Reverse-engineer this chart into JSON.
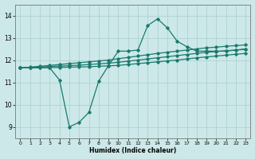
{
  "xlabel": "Humidex (Indice chaleur)",
  "line_color": "#1a7a6e",
  "bg_color": "#cce8e8",
  "grid_color": "#aacfcf",
  "xlim": [
    -0.5,
    23.5
  ],
  "ylim": [
    8.5,
    14.5
  ],
  "yticks": [
    9,
    10,
    11,
    12,
    13,
    14
  ],
  "xticks": [
    0,
    1,
    2,
    3,
    4,
    5,
    6,
    7,
    8,
    9,
    10,
    11,
    12,
    13,
    14,
    15,
    16,
    17,
    18,
    19,
    20,
    21,
    22,
    23
  ],
  "series1_x": [
    0,
    1,
    2,
    3,
    4,
    5,
    6,
    7,
    8,
    9,
    10,
    11,
    12,
    13,
    14,
    15,
    16,
    17,
    18,
    19,
    20,
    21,
    22,
    23
  ],
  "series1_y": [
    11.65,
    11.65,
    11.65,
    11.65,
    11.1,
    9.0,
    9.2,
    9.65,
    11.05,
    11.75,
    12.4,
    12.4,
    12.45,
    13.55,
    13.85,
    13.45,
    12.85,
    12.6,
    12.4,
    12.4,
    12.4,
    12.4,
    12.45,
    12.5
  ],
  "series2_x": [
    0,
    1,
    2,
    3,
    4,
    5,
    6,
    7,
    8,
    9,
    10,
    11,
    12,
    13,
    14,
    15,
    16,
    17,
    18,
    19,
    20,
    21,
    22,
    23
  ],
  "series2_y": [
    11.65,
    11.68,
    11.72,
    11.76,
    11.8,
    11.84,
    11.88,
    11.92,
    11.96,
    12.0,
    12.06,
    12.12,
    12.18,
    12.24,
    12.3,
    12.35,
    12.4,
    12.45,
    12.5,
    12.55,
    12.58,
    12.62,
    12.65,
    12.68
  ],
  "series3_x": [
    0,
    1,
    2,
    3,
    4,
    5,
    6,
    7,
    8,
    9,
    10,
    11,
    12,
    13,
    14,
    15,
    16,
    17,
    18,
    19,
    20,
    21,
    22,
    23
  ],
  "series3_y": [
    11.65,
    11.67,
    11.69,
    11.71,
    11.73,
    11.75,
    11.77,
    11.8,
    11.83,
    11.86,
    11.9,
    11.95,
    12.0,
    12.05,
    12.1,
    12.15,
    12.2,
    12.25,
    12.3,
    12.35,
    12.38,
    12.42,
    12.45,
    12.48
  ],
  "series4_x": [
    0,
    1,
    2,
    3,
    4,
    5,
    6,
    7,
    8,
    9,
    10,
    11,
    12,
    13,
    14,
    15,
    16,
    17,
    18,
    19,
    20,
    21,
    22,
    23
  ],
  "series4_y": [
    11.65,
    11.65,
    11.65,
    11.66,
    11.67,
    11.68,
    11.69,
    11.7,
    11.72,
    11.74,
    11.76,
    11.8,
    11.84,
    11.88,
    11.92,
    11.96,
    12.0,
    12.05,
    12.1,
    12.14,
    12.18,
    12.22,
    12.26,
    12.3
  ]
}
